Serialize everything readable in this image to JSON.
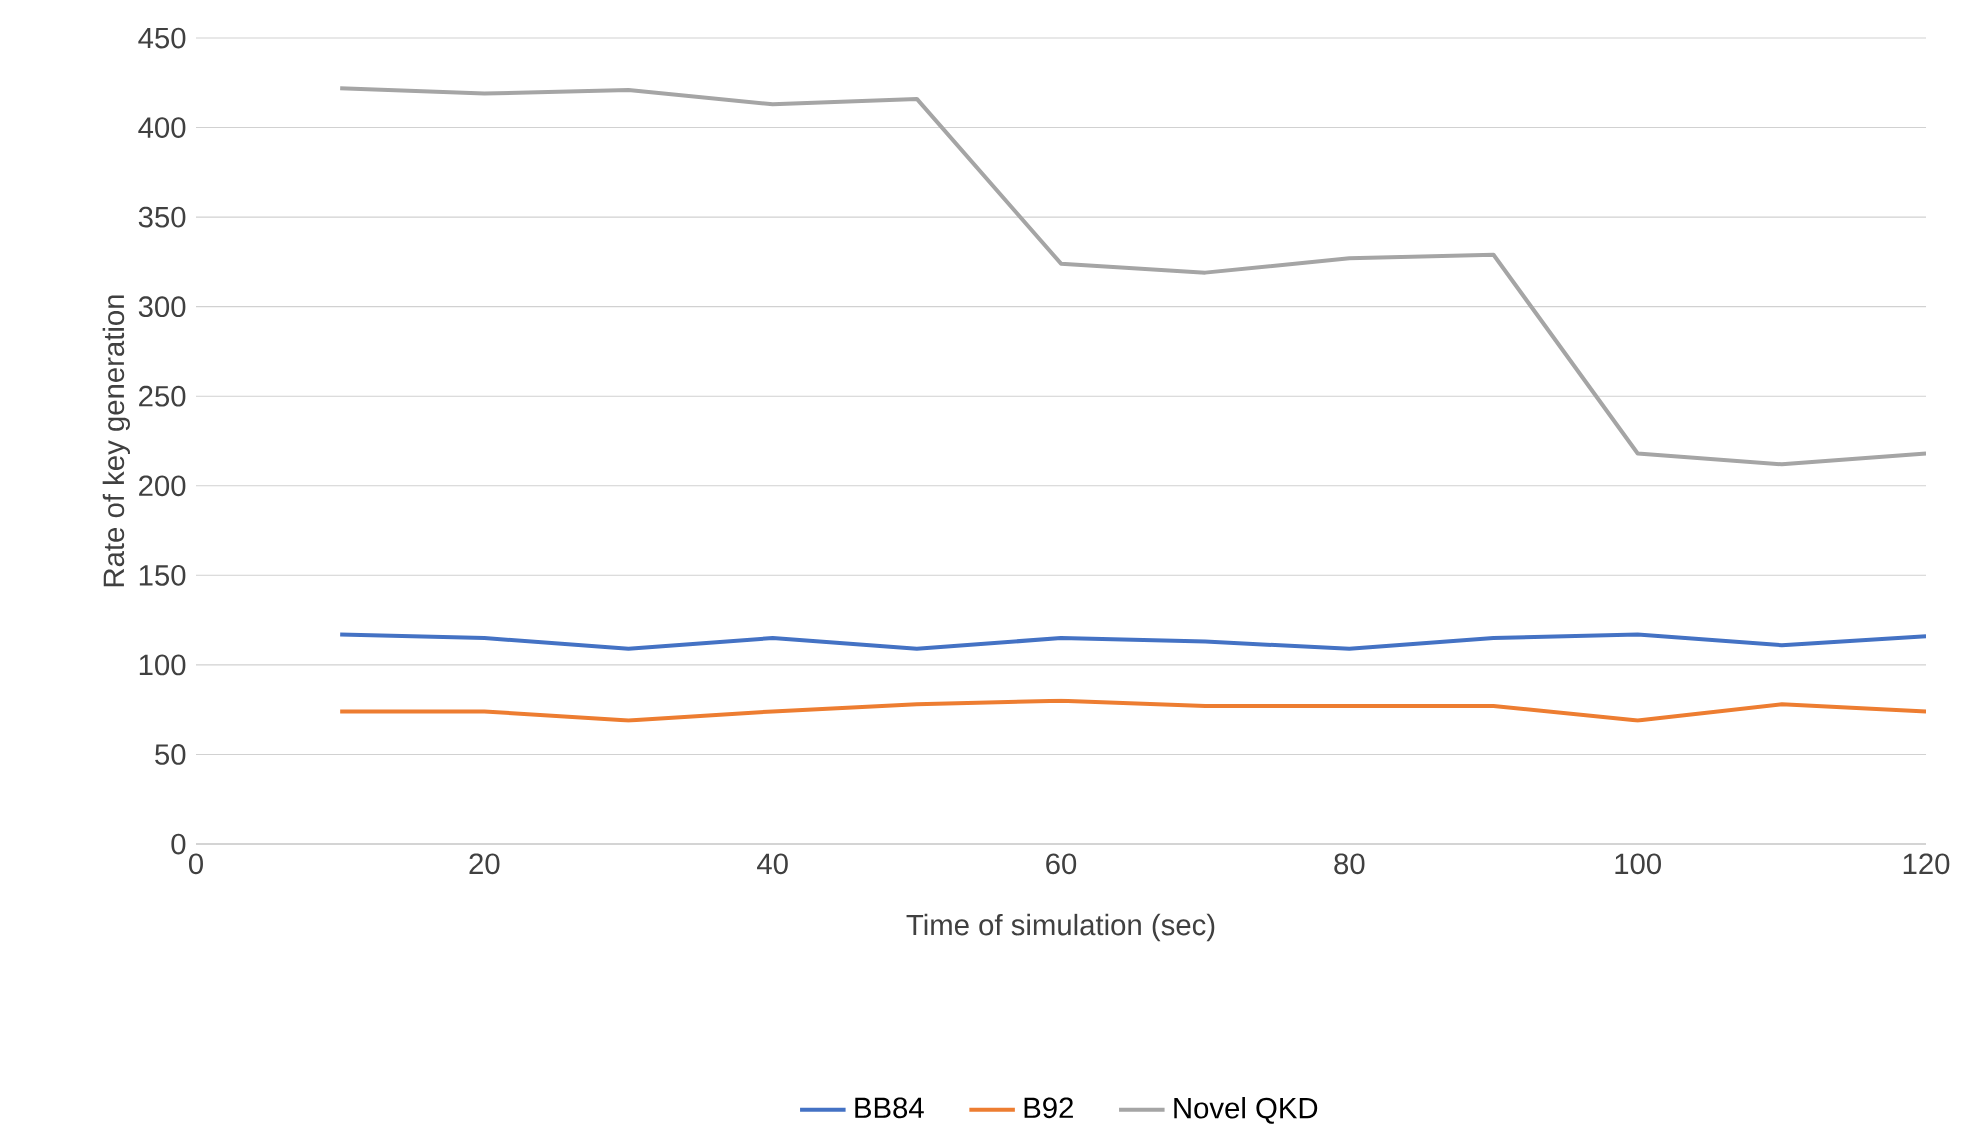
{
  "chart_data": {
    "type": "line",
    "xlabel": "Time of simulation (sec)",
    "ylabel": "Rate of key generation",
    "x": [
      10,
      20,
      30,
      40,
      50,
      60,
      70,
      80,
      90,
      100,
      110,
      120
    ],
    "series": [
      {
        "name": "BB84",
        "color": "#4472c4",
        "values": [
          117,
          115,
          109,
          115,
          109,
          115,
          113,
          109,
          115,
          117,
          111,
          116
        ]
      },
      {
        "name": "B92",
        "color": "#ed7d31",
        "values": [
          74,
          74,
          69,
          74,
          78,
          80,
          77,
          77,
          77,
          69,
          78,
          74
        ]
      },
      {
        "name": "Novel QKD",
        "color": "#a5a5a5",
        "values": [
          422,
          419,
          421,
          413,
          416,
          324,
          319,
          327,
          329,
          218,
          212,
          218
        ]
      }
    ],
    "xlim": [
      0,
      120
    ],
    "ylim": [
      0,
      450
    ],
    "xticks": [
      0,
      20,
      40,
      60,
      80,
      100,
      120
    ],
    "yticks": [
      0,
      50,
      100,
      150,
      200,
      250,
      300,
      350,
      400,
      450
    ],
    "grid": "y",
    "legend": "bottom",
    "marker": "none",
    "line_style": "solid"
  }
}
